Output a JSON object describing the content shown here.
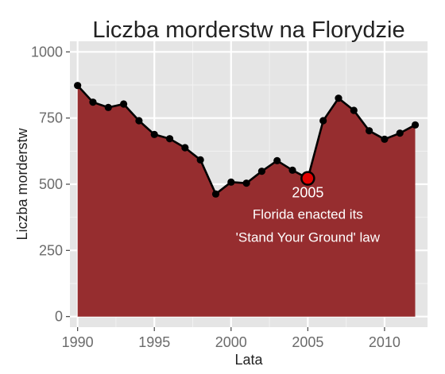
{
  "chart_data": {
    "type": "area",
    "title": "Liczba morderstw na Florydzie",
    "xlabel": "Lata",
    "ylabel": "Liczba morderstw",
    "x": [
      1990,
      1991,
      1992,
      1993,
      1994,
      1995,
      1996,
      1997,
      1998,
      1999,
      2000,
      2001,
      2002,
      2003,
      2004,
      2005,
      2006,
      2007,
      2008,
      2009,
      2010,
      2011,
      2012
    ],
    "series": [
      {
        "values": [
          873,
          810,
          790,
          803,
          740,
          688,
          672,
          638,
          592,
          463,
          508,
          504,
          549,
          589,
          553,
          522,
          740,
          825,
          779,
          702,
          670,
          693,
          724
        ]
      }
    ],
    "xlim": [
      1989.5,
      2012.8
    ],
    "ylim": [
      -40,
      1040
    ],
    "xticks": [
      1990,
      1995,
      2000,
      2005,
      2010
    ],
    "yticks": [
      0,
      250,
      500,
      750,
      1000
    ],
    "grid": true,
    "background": "#e5e5e5",
    "gridline_color": "#ffffff",
    "fill_color": "#962d2f",
    "line_color": "#000000",
    "highlight": {
      "x": 2005,
      "y": 522,
      "marker_color": "#e00000",
      "year_label": "2005",
      "line1": "Florida enacted its",
      "line2": "'Stand Your Ground' law"
    }
  }
}
